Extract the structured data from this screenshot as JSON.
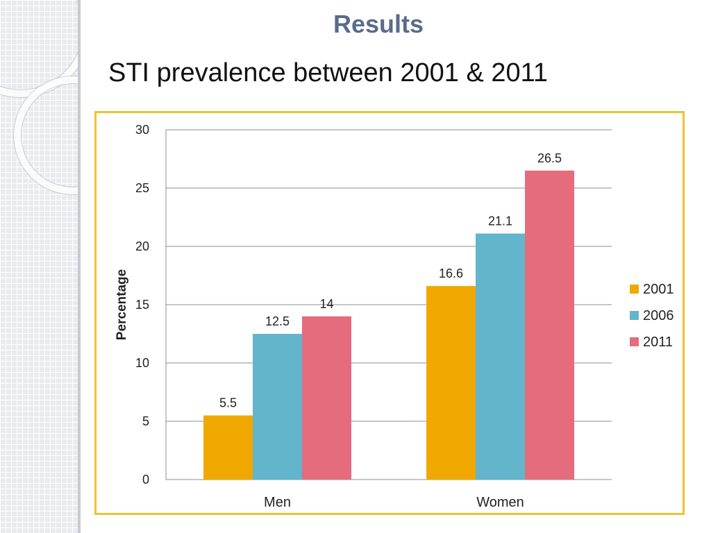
{
  "slide": {
    "title": "Results",
    "subtitle": "STI prevalence between 2001 & 2011"
  },
  "chart_data": {
    "type": "bar",
    "categories": [
      "Men",
      "Women"
    ],
    "series": [
      {
        "name": "2001",
        "values": [
          5.5,
          16.6
        ],
        "color": "#f0a800"
      },
      {
        "name": "2006",
        "values": [
          12.5,
          21.1
        ],
        "color": "#63b5cc"
      },
      {
        "name": "2011",
        "values": [
          14,
          26.5
        ],
        "color": "#e46c7c"
      }
    ],
    "data_labels": [
      [
        "5.5",
        "16.6"
      ],
      [
        "12.5",
        "21.1"
      ],
      [
        "14",
        "26.5"
      ]
    ],
    "ylabel": "Percentage",
    "ylim": [
      0,
      30
    ],
    "yticks": [
      0,
      5,
      10,
      15,
      20,
      25,
      30
    ],
    "grid": true,
    "legend_position": "right",
    "frame_color": "#f0c232"
  }
}
